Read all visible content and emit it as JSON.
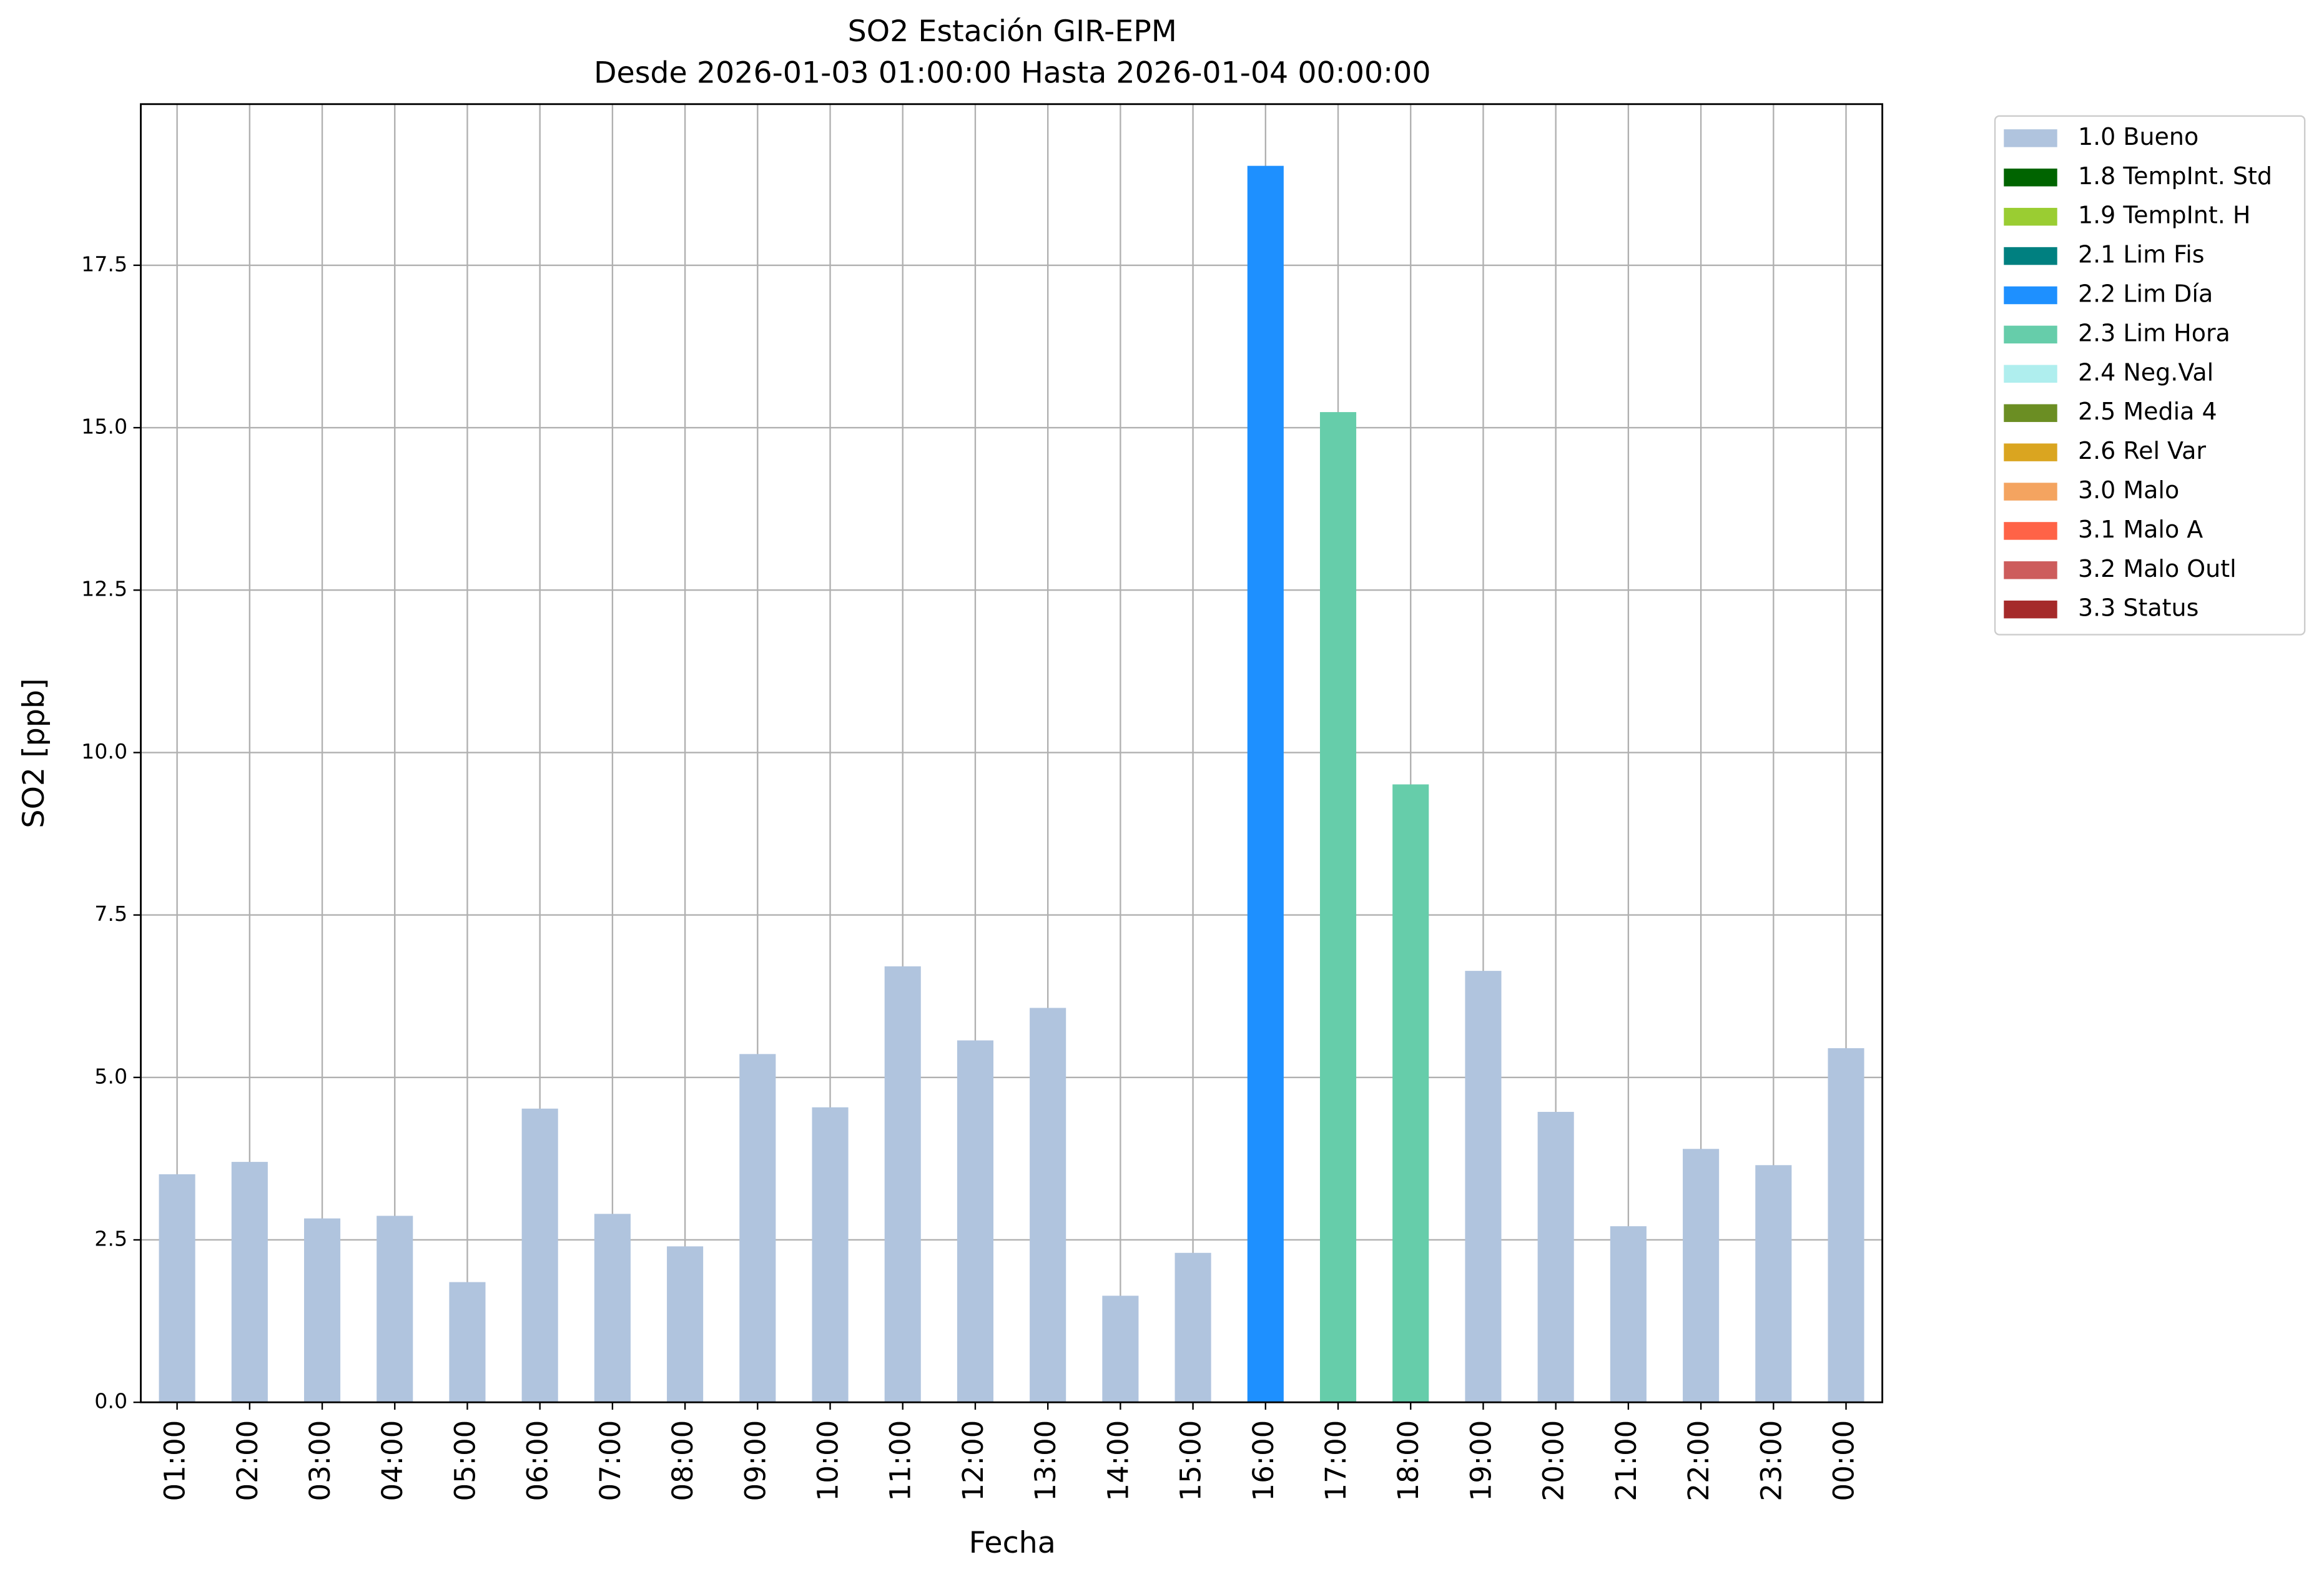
{
  "chart_data": {
    "type": "stacked_bar",
    "title": "SO2 Estación GIR-EPM",
    "subtitle": "Desde 2026-01-03 01:00:00 Hasta 2026-01-04 00:00:00",
    "x_label": "Fecha",
    "y_label": "SO2 [ppb]",
    "categories": [
      "01:00",
      "02:00",
      "03:00",
      "04:00",
      "05:00",
      "06:00",
      "07:00",
      "08:00",
      "09:00",
      "10:00",
      "11:00",
      "12:00",
      "13:00",
      "14:00",
      "15:00",
      "16:00",
      "17:00",
      "18:00",
      "19:00",
      "20:00",
      "21:00",
      "22:00",
      "23:00",
      "00:00"
    ],
    "series": [
      {
        "name": "1.0 Bueno",
        "color": "#b0c4de",
        "values": [
          3.51,
          3.7,
          2.83,
          2.87,
          1.85,
          4.52,
          2.9,
          2.4,
          5.36,
          4.54,
          6.71,
          5.57,
          6.07,
          1.64,
          2.3,
          null,
          null,
          null,
          6.64,
          4.47,
          2.71,
          3.9,
          3.65,
          5.45
        ]
      },
      {
        "name": "1.8 TempInt. Std",
        "color": "#006400",
        "values": [
          null,
          null,
          null,
          null,
          null,
          null,
          null,
          null,
          null,
          null,
          null,
          null,
          null,
          null,
          null,
          null,
          null,
          null,
          null,
          null,
          null,
          null,
          null,
          null
        ]
      },
      {
        "name": "1.9 TempInt. H",
        "color": "#9acd32",
        "values": [
          null,
          null,
          null,
          null,
          null,
          null,
          null,
          null,
          null,
          null,
          null,
          null,
          null,
          null,
          null,
          null,
          null,
          null,
          null,
          null,
          null,
          null,
          null,
          null
        ]
      },
      {
        "name": "2.1 Lim Fis",
        "color": "#008080",
        "values": [
          null,
          null,
          null,
          null,
          null,
          null,
          null,
          null,
          null,
          null,
          null,
          null,
          null,
          null,
          null,
          null,
          null,
          null,
          null,
          null,
          null,
          null,
          null,
          null
        ]
      },
      {
        "name": "2.2 Lim Día",
        "color": "#1e90ff",
        "values": [
          null,
          null,
          null,
          null,
          null,
          null,
          null,
          null,
          null,
          null,
          null,
          null,
          null,
          null,
          null,
          19.03,
          null,
          null,
          null,
          null,
          null,
          null,
          null,
          null
        ]
      },
      {
        "name": "2.3 Lim Hora",
        "color": "#66cdaa",
        "values": [
          null,
          null,
          null,
          null,
          null,
          null,
          null,
          null,
          null,
          null,
          null,
          null,
          null,
          null,
          null,
          null,
          15.24,
          9.51,
          null,
          null,
          null,
          null,
          null,
          null
        ]
      },
      {
        "name": "2.4 Neg.Val",
        "color": "#afeeee",
        "values": [
          null,
          null,
          null,
          null,
          null,
          null,
          null,
          null,
          null,
          null,
          null,
          null,
          null,
          null,
          null,
          null,
          null,
          null,
          null,
          null,
          null,
          null,
          null,
          null
        ]
      },
      {
        "name": "2.5 Media 4",
        "color": "#6b8e23",
        "values": [
          null,
          null,
          null,
          null,
          null,
          null,
          null,
          null,
          null,
          null,
          null,
          null,
          null,
          null,
          null,
          null,
          null,
          null,
          null,
          null,
          null,
          null,
          null,
          null
        ]
      },
      {
        "name": "2.6 Rel Var",
        "color": "#daa520",
        "values": [
          null,
          null,
          null,
          null,
          null,
          null,
          null,
          null,
          null,
          null,
          null,
          null,
          null,
          null,
          null,
          null,
          null,
          null,
          null,
          null,
          null,
          null,
          null,
          null
        ]
      },
      {
        "name": "3.0 Malo",
        "color": "#f4a460",
        "values": [
          null,
          null,
          null,
          null,
          null,
          null,
          null,
          null,
          null,
          null,
          null,
          null,
          null,
          null,
          null,
          null,
          null,
          null,
          null,
          null,
          null,
          null,
          null,
          null
        ]
      },
      {
        "name": "3.1 Malo A",
        "color": "#ff6347",
        "values": [
          null,
          null,
          null,
          null,
          null,
          null,
          null,
          null,
          null,
          null,
          null,
          null,
          null,
          null,
          null,
          null,
          null,
          null,
          null,
          null,
          null,
          null,
          null,
          null
        ]
      },
      {
        "name": "3.2 Malo Outl",
        "color": "#cd5c5c",
        "values": [
          null,
          null,
          null,
          null,
          null,
          null,
          null,
          null,
          null,
          null,
          null,
          null,
          null,
          null,
          null,
          null,
          null,
          null,
          null,
          null,
          null,
          null,
          null,
          null
        ]
      },
      {
        "name": "3.3 Status",
        "color": "#a52a2a",
        "values": [
          null,
          null,
          null,
          null,
          null,
          null,
          null,
          null,
          null,
          null,
          null,
          null,
          null,
          null,
          null,
          null,
          null,
          null,
          null,
          null,
          null,
          null,
          null,
          null
        ]
      }
    ],
    "ylim": [
      0,
      19.98
    ],
    "yticks": [
      {
        "value": 0,
        "label": "0.0"
      },
      2.5,
      {
        "value": 5,
        "label": "5.0"
      },
      7.5,
      {
        "value": 10,
        "label": "10.0"
      },
      12.5,
      {
        "value": 15,
        "label": "15.0"
      },
      17.5
    ],
    "grid": true,
    "legend": "outside-right"
  }
}
